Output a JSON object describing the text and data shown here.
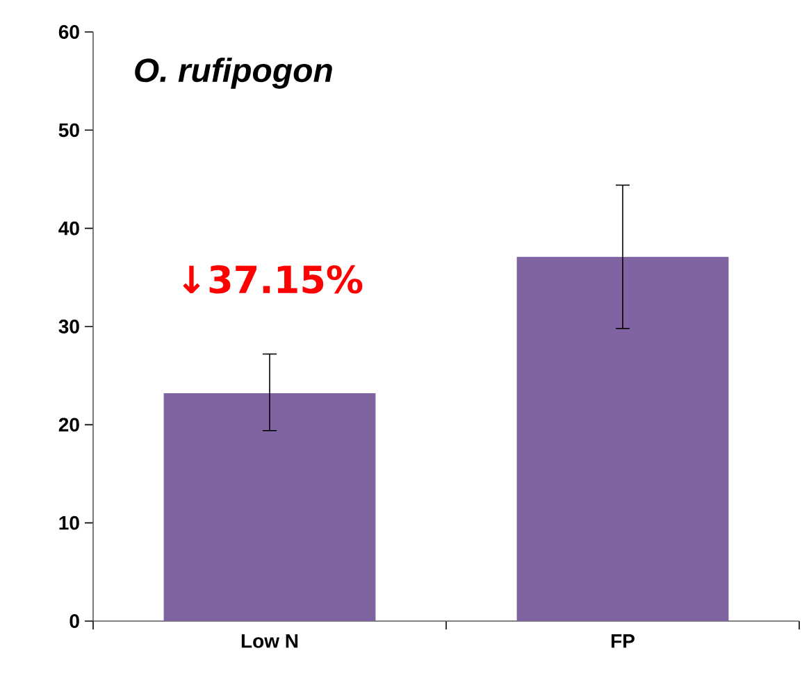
{
  "chart_data": {
    "type": "bar",
    "title": "O. rufipogon",
    "categories": [
      "Low N",
      "FP"
    ],
    "values": [
      23.2,
      37.1
    ],
    "errors": [
      [
        19.4,
        27.2
      ],
      [
        29.8,
        44.4
      ]
    ],
    "color": "#8064a2",
    "ylim": [
      0,
      60
    ],
    "yticks": [
      0,
      10,
      20,
      30,
      40,
      50,
      60
    ],
    "grid": false,
    "annotations": [
      "↓37.15%"
    ]
  }
}
